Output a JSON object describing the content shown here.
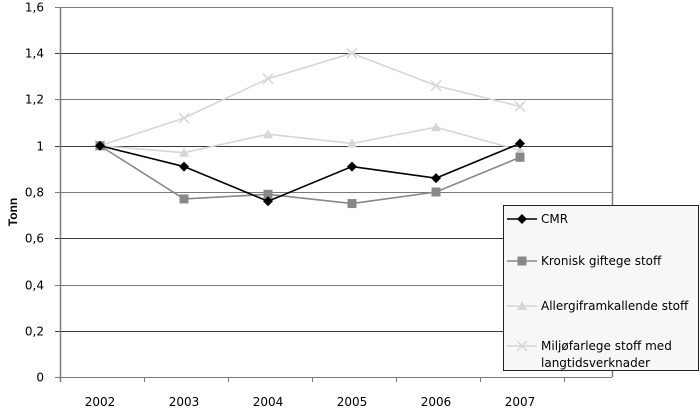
{
  "chart_data": {
    "type": "line",
    "title": "",
    "xlabel": "",
    "ylabel": "Tonn",
    "ylim": [
      0,
      1.6
    ],
    "yticks": [
      "0",
      "0,2",
      "0,4",
      "0,6",
      "0,8",
      "1",
      "1,2",
      "1,4",
      "1,6"
    ],
    "grid": true,
    "legend_position": "right-bottom (inside)",
    "categories": [
      "2002",
      "2003",
      "2004",
      "2005",
      "2006",
      "2007"
    ],
    "series": [
      {
        "name": "CMR",
        "marker": "diamond",
        "color": "#000000",
        "values": [
          1.0,
          0.91,
          0.76,
          0.91,
          0.86,
          1.01
        ]
      },
      {
        "name": "Kronisk giftege stoff",
        "marker": "square",
        "color": "#888888",
        "values": [
          1.0,
          0.77,
          0.79,
          0.75,
          0.8,
          0.95
        ]
      },
      {
        "name": "Allergiframkallende stoff",
        "marker": "triangle",
        "color": "#d6d6d6",
        "values": [
          1.0,
          0.97,
          1.05,
          1.01,
          1.08,
          0.98
        ]
      },
      {
        "name": "Miljøfarlege stoff med langtidsverknader",
        "marker": "x",
        "color": "#d6d6d6",
        "values": [
          1.0,
          1.12,
          1.29,
          1.4,
          1.26,
          1.17
        ]
      }
    ]
  },
  "legend": {
    "items": [
      {
        "label_lines": [
          "CMR"
        ]
      },
      {
        "label_lines": [
          "Kronisk giftege stoff"
        ]
      },
      {
        "label_lines": [
          "Allergiframkallende stoff"
        ]
      },
      {
        "label_lines": [
          "Miljøfarlege stoff med",
          "langtidsverknader"
        ]
      }
    ]
  }
}
